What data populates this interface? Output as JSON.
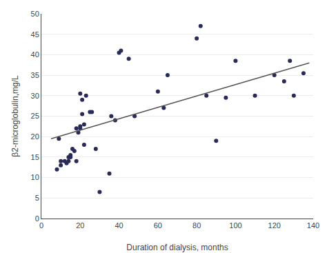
{
  "chart_data": {
    "type": "scatter",
    "xlabel": "Duration of dialysis, months",
    "ylabel": "β2-microglobulin,mg/L",
    "series": [
      {
        "type": "scatter",
        "marker": "circle",
        "color": "#2a2a5a",
        "x": [
          8,
          9,
          10,
          10,
          12,
          13,
          14,
          14,
          15,
          15,
          16,
          17,
          18,
          18,
          19,
          20,
          20,
          20,
          21,
          21,
          22,
          22,
          23,
          25,
          26,
          28,
          30,
          35,
          36,
          38,
          40,
          41,
          45,
          48,
          60,
          63,
          65,
          80,
          82,
          85,
          90,
          95,
          100,
          110,
          120,
          125,
          128,
          130,
          135
        ],
        "values": [
          12,
          19.5,
          13,
          14,
          14,
          13.5,
          14,
          15,
          15,
          15.5,
          17,
          16.5,
          14,
          22,
          21,
          22,
          22.5,
          30.5,
          25.5,
          29,
          18,
          23,
          30,
          26,
          26,
          17,
          6.5,
          11,
          25,
          24,
          40.5,
          41,
          39,
          25,
          31,
          27,
          35,
          44,
          47,
          30,
          19,
          29.5,
          38.5,
          30,
          35,
          33.5,
          38.5,
          30,
          35.5
        ]
      },
      {
        "type": "line",
        "line_style": "solid",
        "color": "#555555",
        "x": [
          5,
          138
        ],
        "values": [
          19.5,
          38.0
        ]
      }
    ],
    "xlim": [
      0,
      140
    ],
    "ylim": [
      0,
      50
    ],
    "xticks": [
      0,
      20,
      40,
      60,
      80,
      100,
      120,
      140
    ],
    "yticks": [
      0,
      5,
      10,
      15,
      20,
      25,
      30,
      35,
      40,
      45,
      50
    ],
    "grid": "y"
  }
}
